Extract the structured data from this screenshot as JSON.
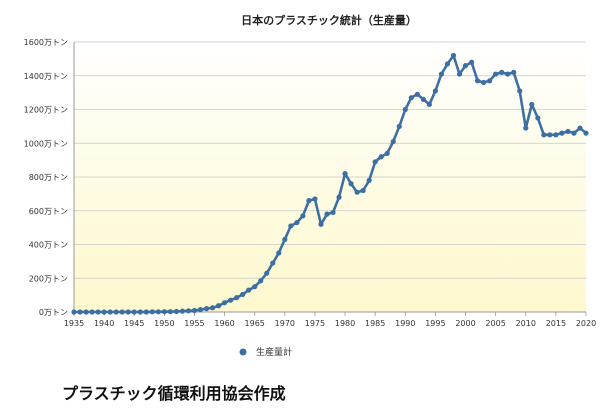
{
  "chart_data": {
    "type": "line",
    "title": "日本のプラスチック統計（生産量）",
    "xlabel": "",
    "ylabel": "",
    "xlim": [
      1935,
      2020
    ],
    "ylim": [
      0,
      1600
    ],
    "y_ticks": [
      {
        "value": 0,
        "label": "0万トン"
      },
      {
        "value": 200,
        "label": "200万トン"
      },
      {
        "value": 400,
        "label": "400万トン"
      },
      {
        "value": 600,
        "label": "600万トン"
      },
      {
        "value": 800,
        "label": "800万トン"
      },
      {
        "value": 1000,
        "label": "1000万トン"
      },
      {
        "value": 1200,
        "label": "1200万トン"
      },
      {
        "value": 1400,
        "label": "1400万トン"
      },
      {
        "value": 1600,
        "label": "1600万トン"
      }
    ],
    "x_ticks": [
      {
        "value": 1935,
        "label": "1935"
      },
      {
        "value": 1940,
        "label": "1940"
      },
      {
        "value": 1945,
        "label": "1945"
      },
      {
        "value": 1950,
        "label": "1950"
      },
      {
        "value": 1955,
        "label": "1955"
      },
      {
        "value": 1960,
        "label": "1960"
      },
      {
        "value": 1965,
        "label": "1965"
      },
      {
        "value": 1970,
        "label": "1970"
      },
      {
        "value": 1975,
        "label": "1975"
      },
      {
        "value": 1980,
        "label": "1980"
      },
      {
        "value": 1985,
        "label": "1985"
      },
      {
        "value": 1990,
        "label": "1990"
      },
      {
        "value": 1995,
        "label": "1995"
      },
      {
        "value": 2000,
        "label": "2000"
      },
      {
        "value": 2005,
        "label": "2005"
      },
      {
        "value": 2010,
        "label": "2010"
      },
      {
        "value": 2015,
        "label": "2015"
      },
      {
        "value": 2020,
        "label": "2020"
      }
    ],
    "grid": true,
    "legend_position": "bottom-left",
    "series": [
      {
        "name": "生産量計",
        "color": "#3d6fa3",
        "points": [
          [
            1935,
            0
          ],
          [
            1936,
            0
          ],
          [
            1937,
            0
          ],
          [
            1938,
            0
          ],
          [
            1939,
            0
          ],
          [
            1940,
            0
          ],
          [
            1941,
            0
          ],
          [
            1942,
            0
          ],
          [
            1943,
            0
          ],
          [
            1944,
            0
          ],
          [
            1945,
            0
          ],
          [
            1946,
            0
          ],
          [
            1947,
            0
          ],
          [
            1948,
            1
          ],
          [
            1949,
            1
          ],
          [
            1950,
            2
          ],
          [
            1951,
            2
          ],
          [
            1952,
            3
          ],
          [
            1953,
            5
          ],
          [
            1954,
            7
          ],
          [
            1955,
            9
          ],
          [
            1956,
            14
          ],
          [
            1957,
            20
          ],
          [
            1958,
            25
          ],
          [
            1959,
            37
          ],
          [
            1960,
            55
          ],
          [
            1961,
            70
          ],
          [
            1962,
            85
          ],
          [
            1963,
            104
          ],
          [
            1964,
            130
          ],
          [
            1965,
            150
          ],
          [
            1966,
            185
          ],
          [
            1967,
            230
          ],
          [
            1968,
            290
          ],
          [
            1969,
            350
          ],
          [
            1970,
            430
          ],
          [
            1971,
            510
          ],
          [
            1972,
            530
          ],
          [
            1973,
            570
          ],
          [
            1974,
            660
          ],
          [
            1975,
            670
          ],
          [
            1976,
            520
          ],
          [
            1977,
            580
          ],
          [
            1978,
            590
          ],
          [
            1979,
            680
          ],
          [
            1980,
            820
          ],
          [
            1981,
            760
          ],
          [
            1982,
            710
          ],
          [
            1983,
            720
          ],
          [
            1984,
            780
          ],
          [
            1985,
            890
          ],
          [
            1986,
            920
          ],
          [
            1987,
            940
          ],
          [
            1988,
            1010
          ],
          [
            1989,
            1100
          ],
          [
            1990,
            1200
          ],
          [
            1991,
            1270
          ],
          [
            1992,
            1290
          ],
          [
            1993,
            1260
          ],
          [
            1994,
            1230
          ],
          [
            1995,
            1310
          ],
          [
            1996,
            1410
          ],
          [
            1997,
            1470
          ],
          [
            1998,
            1520
          ],
          [
            1999,
            1410
          ],
          [
            2000,
            1460
          ],
          [
            2001,
            1480
          ],
          [
            2002,
            1370
          ],
          [
            2003,
            1360
          ],
          [
            2004,
            1370
          ],
          [
            2005,
            1410
          ],
          [
            2006,
            1420
          ],
          [
            2007,
            1410
          ],
          [
            2008,
            1420
          ],
          [
            2009,
            1310
          ],
          [
            2010,
            1090
          ],
          [
            2011,
            1230
          ],
          [
            2012,
            1150
          ],
          [
            2013,
            1050
          ],
          [
            2014,
            1050
          ],
          [
            2015,
            1050
          ],
          [
            2016,
            1060
          ],
          [
            2017,
            1070
          ],
          [
            2018,
            1060
          ],
          [
            2019,
            1090
          ],
          [
            2020,
            1060
          ]
        ]
      }
    ]
  },
  "footer": {
    "source": "プラスチック循環利用協会作成"
  }
}
